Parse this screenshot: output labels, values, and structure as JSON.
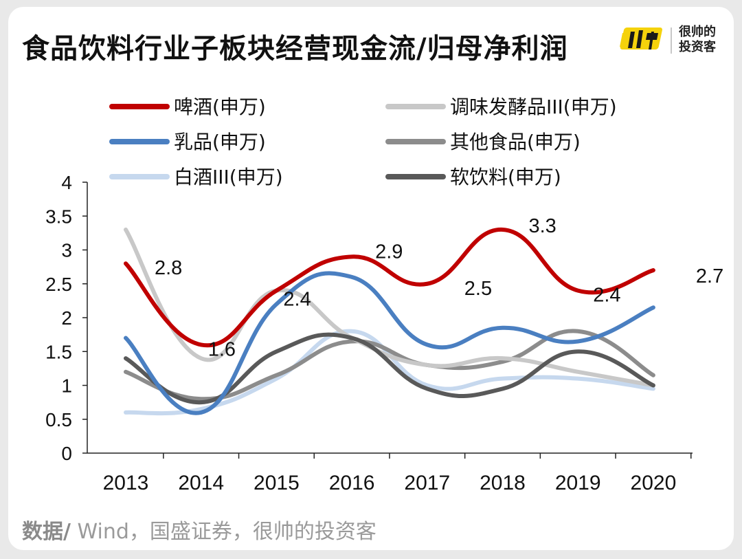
{
  "header": {
    "title": "食品饮料行业子板块经营现金流/归母净利润",
    "brand_logo_text": "很帅",
    "brand_line1": "很帅的",
    "brand_line2": "投资客"
  },
  "footer": {
    "label": "数据/",
    "source": " Wind，国盛证券，很帅的投资客"
  },
  "chart_data": {
    "type": "line",
    "categories": [
      "2013",
      "2014",
      "2015",
      "2016",
      "2017",
      "2018",
      "2019",
      "2020"
    ],
    "ylim": [
      0,
      4
    ],
    "yticks": [
      "0",
      "0.5",
      "1",
      "1.5",
      "2",
      "2.5",
      "3",
      "3.5",
      "4"
    ],
    "grid": false,
    "legend_position": "top",
    "series": [
      {
        "name": "啤酒(申万)",
        "color": "#c00000",
        "values": [
          2.8,
          1.6,
          2.4,
          2.9,
          2.5,
          3.3,
          2.4,
          2.7
        ]
      },
      {
        "name": "调味发酵品III(申万)",
        "color": "#c8c8c8",
        "values": [
          3.3,
          1.4,
          2.4,
          1.7,
          1.3,
          1.4,
          1.2,
          1.0
        ]
      },
      {
        "name": "乳品(申万)",
        "color": "#4a7fc1",
        "values": [
          1.7,
          0.6,
          2.2,
          2.6,
          1.6,
          1.85,
          1.65,
          2.15
        ]
      },
      {
        "name": "其他食品(申万)",
        "color": "#8c8c8c",
        "values": [
          1.2,
          0.8,
          1.15,
          1.65,
          1.3,
          1.35,
          1.8,
          1.15
        ]
      },
      {
        "name": "白酒III(申万)",
        "color": "#c6d8ee",
        "values": [
          0.6,
          0.65,
          1.1,
          1.8,
          1.0,
          1.1,
          1.1,
          0.95
        ]
      },
      {
        "name": "软饮料(申万)",
        "color": "#595959",
        "values": [
          1.4,
          0.75,
          1.5,
          1.7,
          0.95,
          0.95,
          1.5,
          1.0
        ]
      }
    ],
    "data_labels": [
      {
        "series": 0,
        "index": 0,
        "text": "2.8"
      },
      {
        "series": 0,
        "index": 1,
        "text": "1.6"
      },
      {
        "series": 0,
        "index": 2,
        "text": "2.4"
      },
      {
        "series": 0,
        "index": 3,
        "text": "2.9"
      },
      {
        "series": 0,
        "index": 4,
        "text": "2.5"
      },
      {
        "series": 0,
        "index": 5,
        "text": "3.3"
      },
      {
        "series": 0,
        "index": 6,
        "text": "2.4"
      },
      {
        "series": 0,
        "index": 7,
        "text": "2.7"
      }
    ]
  }
}
